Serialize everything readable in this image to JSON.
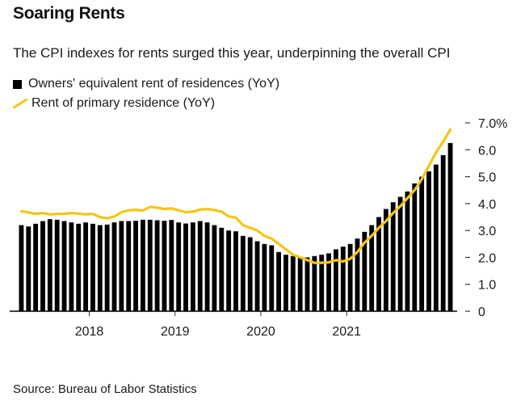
{
  "title": "Soaring Rents",
  "subtitle": "The CPI indexes for rents surged this year, underpinning the overall CPI",
  "source": "Source: Bureau of Labor Statistics",
  "colors": {
    "bars": "#000000",
    "line": "#f5c518",
    "axis": "#000000"
  },
  "chart_data": {
    "type": "bar",
    "title": "Soaring Rents",
    "xlabel": "",
    "ylabel": "",
    "ylim": [
      0,
      7
    ],
    "x_ticks": [
      "2018",
      "2019",
      "2020",
      "2021"
    ],
    "y_ticks": [
      {
        "value": 0,
        "label": "0"
      },
      {
        "value": 1,
        "label": "1.0"
      },
      {
        "value": 2,
        "label": "2.0"
      },
      {
        "value": 3,
        "label": "3.0"
      },
      {
        "value": 4,
        "label": "4.0"
      },
      {
        "value": 5,
        "label": "5.0"
      },
      {
        "value": 6,
        "label": "6.0"
      },
      {
        "value": 7,
        "label": "7.0%"
      }
    ],
    "series": [
      {
        "name": "Owners' equivalent rent of residences (YoY)",
        "type": "bar",
        "values": [
          3.2,
          3.15,
          3.25,
          3.35,
          3.42,
          3.4,
          3.35,
          3.3,
          3.25,
          3.3,
          3.25,
          3.2,
          3.22,
          3.3,
          3.35,
          3.35,
          3.36,
          3.4,
          3.4,
          3.38,
          3.36,
          3.39,
          3.3,
          3.26,
          3.3,
          3.35,
          3.3,
          3.2,
          3.1,
          3.0,
          2.97,
          2.8,
          2.75,
          2.6,
          2.5,
          2.45,
          2.2,
          2.1,
          2.05,
          2.0,
          2.0,
          2.05,
          2.1,
          2.15,
          2.3,
          2.4,
          2.5,
          2.7,
          2.95,
          3.2,
          3.5,
          3.8,
          4.05,
          4.25,
          4.45,
          4.75,
          5.0,
          5.2,
          5.45,
          5.8,
          6.25
        ]
      },
      {
        "name": "Rent of primary residence (YoY)",
        "type": "line",
        "values": [
          3.72,
          3.67,
          3.62,
          3.65,
          3.6,
          3.62,
          3.62,
          3.65,
          3.63,
          3.6,
          3.62,
          3.5,
          3.45,
          3.52,
          3.68,
          3.75,
          3.77,
          3.74,
          3.88,
          3.85,
          3.8,
          3.82,
          3.75,
          3.68,
          3.7,
          3.78,
          3.8,
          3.76,
          3.7,
          3.52,
          3.48,
          3.2,
          3.1,
          3.0,
          2.8,
          2.7,
          2.5,
          2.3,
          2.1,
          2.0,
          1.9,
          1.8,
          1.8,
          1.82,
          1.9,
          1.85,
          1.95,
          2.2,
          2.55,
          2.8,
          3.1,
          3.35,
          3.65,
          3.9,
          4.2,
          4.5,
          4.9,
          5.4,
          5.9,
          6.3,
          6.75
        ]
      }
    ]
  }
}
